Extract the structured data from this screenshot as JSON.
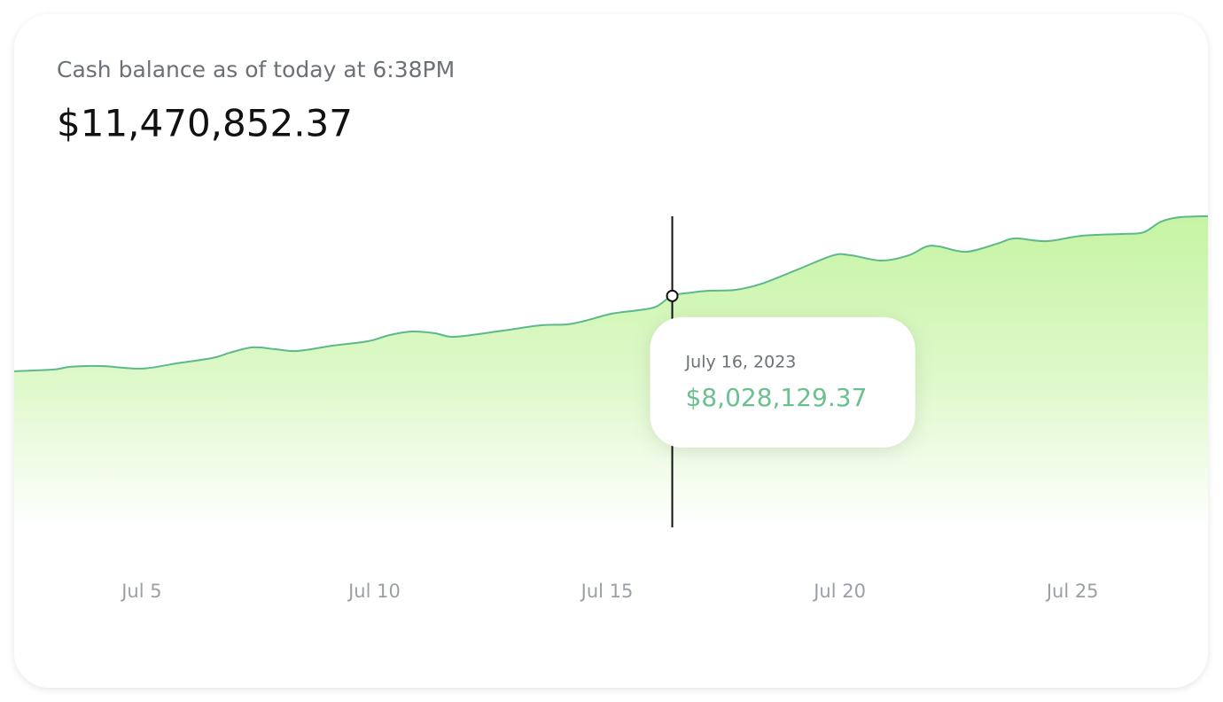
{
  "chart_data": {
    "type": "area",
    "subtitle": "Cash balance as of today at 6:38PM",
    "title": "$11,470,852.37",
    "x": [
      2.26,
      3.1,
      3.48,
      4.14,
      5,
      5.76,
      6.52,
      6.9,
      7.38,
      7.86,
      8.33,
      9.1,
      9.86,
      10.33,
      10.81,
      11.29,
      11.67,
      12.24,
      12.9,
      13.57,
      14.14,
      14.52,
      15.1,
      15.67,
      16.05,
      16.4,
      16.81,
      17.19,
      17.76,
      18.33,
      19.1,
      19.86,
      20.24,
      20.9,
      21.48,
      21.86,
      22.14,
      22.71,
      23.38,
      23.76,
      24.43,
      25.19,
      26.05,
      26.52,
      26.9,
      27.29,
      27.91
    ],
    "series": [
      {
        "color": "#5cb98a",
        "fill": "#c6f4a3",
        "values": [
          4775000,
          4850000,
          4970000,
          5000000,
          4890000,
          5120000,
          5350000,
          5580000,
          5810000,
          5730000,
          5650000,
          5880000,
          6070000,
          6340000,
          6490000,
          6420000,
          6260000,
          6380000,
          6570000,
          6760000,
          6800000,
          6950000,
          7260000,
          7410000,
          7560000,
          8028129.37,
          8170000,
          8250000,
          8290000,
          8560000,
          9170000,
          9780000,
          9780000,
          9550000,
          9780000,
          10160000,
          10160000,
          9930000,
          10280000,
          10510000,
          10390000,
          10620000,
          10700000,
          10770000,
          11230000,
          11420000,
          11470852.37
        ],
        "value_labels": [
          null,
          null,
          null,
          null,
          null,
          null,
          null,
          null,
          null,
          null,
          null,
          null,
          null,
          null,
          null,
          null,
          null,
          null,
          null,
          null,
          null,
          null,
          null,
          null,
          null,
          "$8,028,129.37",
          null,
          null,
          null,
          null,
          null,
          null,
          null,
          null,
          null,
          null,
          null,
          null,
          null,
          null,
          null,
          null,
          null,
          null,
          null,
          null,
          null
        ]
      }
    ],
    "tooltip_date": "July 16, 2023",
    "xlim": [
      2.26,
      27.91
    ],
    "xticks": [
      {
        "value": 5,
        "label": "Jul 5"
      },
      {
        "value": 10,
        "label": "Jul 10"
      },
      {
        "value": 15,
        "label": "Jul 15"
      },
      {
        "value": 20,
        "label": "Jul 20"
      },
      {
        "value": 25,
        "label": "Jul 25"
      }
    ],
    "ylim": [
      -2000000,
      12000000
    ],
    "grid": false
  }
}
